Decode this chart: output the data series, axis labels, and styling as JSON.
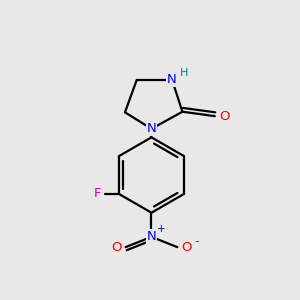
{
  "background_color": "#e8e8e8",
  "bond_color": "#000000",
  "bond_width": 1.6,
  "atom_colors": {
    "N": "#0000ff",
    "O": "#ff0000",
    "F": "#cc00cc",
    "H": "#008080",
    "C": "#000000"
  },
  "figsize": [
    3.0,
    3.0
  ],
  "dpi": 100
}
